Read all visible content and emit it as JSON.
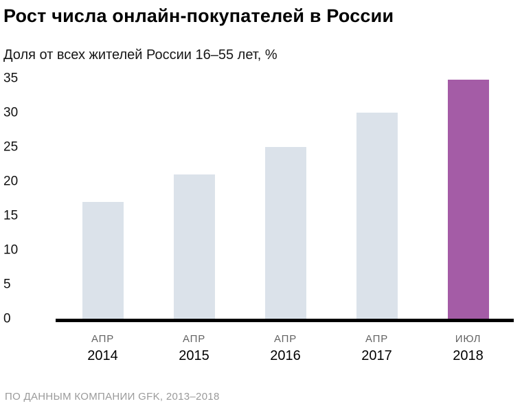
{
  "title": "Рост числа онлайн-покупателей в России",
  "subtitle": "Доля от всех жителей России 16–55 лет, %",
  "footer": "ПО ДАННЫМ КОМПАНИИ GFK, 2013–2018",
  "colors": {
    "bar_default": "#dbe2ea",
    "bar_highlight": "#a45ca6",
    "axis": "#000000",
    "month_label": "#636363",
    "footer_text": "#9a9a9a"
  },
  "chart_data": {
    "type": "bar",
    "title": "Рост числа онлайн-покупателей в России",
    "subtitle": "Доля от всех жителей России 16–55 лет, %",
    "categories": [
      {
        "month": "АПР",
        "year": "2014"
      },
      {
        "month": "АПР",
        "year": "2015"
      },
      {
        "month": "АПР",
        "year": "2016"
      },
      {
        "month": "АПР",
        "year": "2017"
      },
      {
        "month": "ИЮЛ",
        "year": "2018"
      }
    ],
    "values": [
      17,
      21,
      25,
      30,
      34.8
    ],
    "highlight_index": 4,
    "y_ticks": [
      0,
      5,
      10,
      15,
      20,
      25,
      30,
      35
    ],
    "ylim": [
      0,
      35
    ],
    "xlabel": "",
    "ylabel": "%",
    "grid": false,
    "legend": false,
    "source": "ПО ДАННЫМ КОМПАНИИ GFK, 2013–2018"
  }
}
